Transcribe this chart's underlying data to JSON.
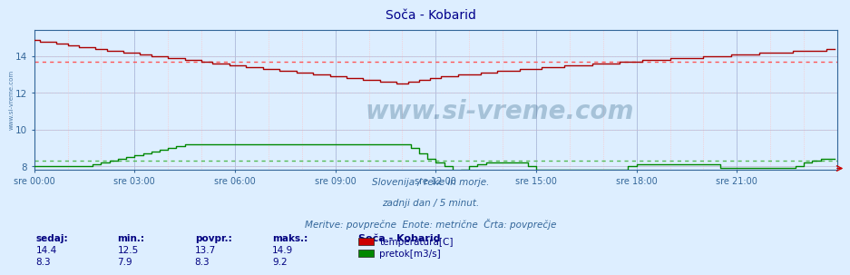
{
  "title": "Soča - Kobarid",
  "title_color": "#00008B",
  "bg_color": "#ddeeff",
  "plot_bg_color": "#ddeeff",
  "temp_color": "#aa0000",
  "flow_color": "#008800",
  "temp_avg": 13.7,
  "flow_avg": 8.3,
  "avg_color_temp": "#ff5555",
  "avg_color_flow": "#55bb55",
  "ylim": [
    7.8,
    15.4
  ],
  "y_ticks": [
    8,
    10,
    12,
    14
  ],
  "x_tick_hours": [
    0,
    3,
    6,
    9,
    12,
    15,
    18,
    21
  ],
  "x_tick_labels": [
    "sre 00:00",
    "sre 03:00",
    "sre 06:00",
    "sre 09:00",
    "sre 12:00",
    "sre 15:00",
    "sre 18:00",
    "sre 21:00"
  ],
  "subtitle1": "Slovenija / reke in morje.",
  "subtitle2": "zadnji dan / 5 minut.",
  "subtitle3": "Meritve: povprečne  Enote: metrične  Črta: povprečje",
  "subtitle_color": "#336699",
  "legend_title": "Soča - Kobarid",
  "legend_items": [
    "temperatura[C]",
    "pretok[m3/s]"
  ],
  "legend_colors": [
    "#cc0000",
    "#008800"
  ],
  "stat_headers": [
    "sedaj:",
    "min.:",
    "povpr.:",
    "maks.:"
  ],
  "stat_temp": [
    14.4,
    12.5,
    13.7,
    14.9
  ],
  "stat_flow": [
    8.3,
    7.9,
    8.3,
    9.2
  ],
  "stat_color": "#000080",
  "axis_color": "#336699",
  "tick_color": "#336699",
  "vgrid_major_color": "#aabbdd",
  "vgrid_minor_color": "#ffbbbb",
  "hgrid_color": "#ffbbbb",
  "hgrid_solid_color": "#aabbdd",
  "watermark": "www.si-vreme.com",
  "watermark_color": "#1a5276",
  "left_watermark": "www.si-vreme.com",
  "left_wm_color": "#336699"
}
